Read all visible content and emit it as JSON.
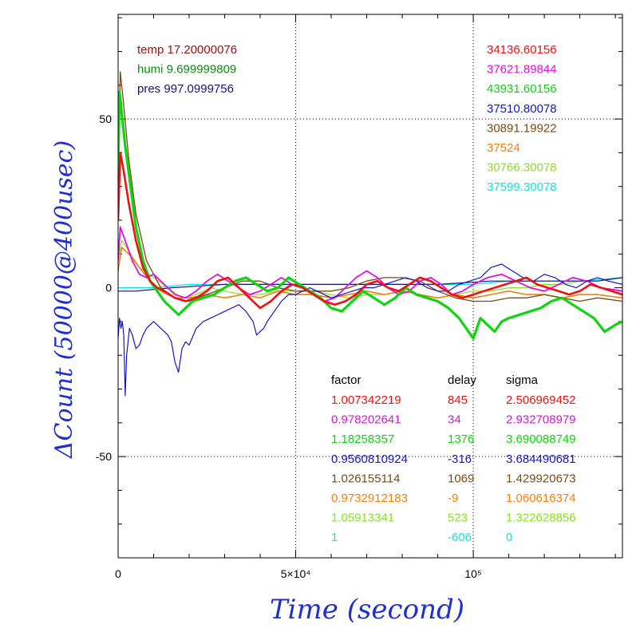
{
  "chart_data": {
    "type": "line",
    "xlabel": "Time (second)",
    "ylabel": "ΔCount (50000@400usec)",
    "xlim": [
      0,
      142000
    ],
    "ylim": [
      -80,
      81
    ],
    "grid": "dotted at x=50000, x=100000, y=50, y=-50",
    "y_ticks": [
      {
        "value": 50,
        "label": "50"
      },
      {
        "value": 0,
        "label": "0"
      },
      {
        "value": -50,
        "label": "-50"
      }
    ],
    "x_ticks": [
      {
        "value": 0,
        "label": "0"
      },
      {
        "value": 50000,
        "label": "5×10⁴"
      },
      {
        "value": 100000,
        "label": "10⁵"
      }
    ],
    "env": [
      {
        "text": "temp 17.20000076",
        "color": "#9b1010"
      },
      {
        "text": "humi 9.699999809",
        "color": "#0d8a0d"
      },
      {
        "text": "pres 997.0999756",
        "color": "#14147a"
      }
    ],
    "means": [
      {
        "text": "34136.60156",
        "color": "#ee1111"
      },
      {
        "text": "37621.89844",
        "color": "#e010e0"
      },
      {
        "text": "43931.60156",
        "color": "#10d410"
      },
      {
        "text": "37510.80078",
        "color": "#1515c8"
      },
      {
        "text": "30891.19922",
        "color": "#7a4a14"
      },
      {
        "text": "37524",
        "color": "#f08010"
      },
      {
        "text": "30766.30078",
        "color": "#8ae020"
      },
      {
        "text": "37599.30078",
        "color": "#10e0e0"
      }
    ],
    "table": {
      "headers": [
        "factor",
        "delay",
        "sigma"
      ],
      "header_color": "#000000",
      "rows": [
        {
          "factor": "1.007342219",
          "delay": "845",
          "sigma": "2.506969452",
          "color": "#ee1111"
        },
        {
          "factor": "0.978202641",
          "delay": "34",
          "sigma": "2.932708979",
          "color": "#e010e0"
        },
        {
          "factor": "1.18258357",
          "delay": "1376",
          "sigma": "3.690088749",
          "color": "#10d410"
        },
        {
          "factor": "0.9560810924",
          "delay": "-316",
          "sigma": "3.684490681",
          "color": "#1515c8"
        },
        {
          "factor": "1.026155114",
          "delay": "1069",
          "sigma": "1.429920673",
          "color": "#7a4a14"
        },
        {
          "factor": "0.9732912183",
          "delay": "-9",
          "sigma": "1.060616374",
          "color": "#f08010"
        },
        {
          "factor": "1.05913341",
          "delay": "523",
          "sigma": "1.322628856",
          "color": "#8ae020"
        },
        {
          "factor": "1",
          "delay": "-606",
          "sigma": "0",
          "color": "#10e0e0"
        }
      ]
    },
    "series": [
      {
        "color": "#8ae020",
        "width": 1.2,
        "x": [
          0,
          1000,
          3000,
          6000,
          10000,
          14000,
          18000,
          22000,
          26000,
          30000,
          35000,
          40000,
          45000,
          50000,
          55000,
          60000,
          65000,
          70000,
          75000,
          80000,
          85000,
          90000,
          95000,
          100000,
          105000,
          110000,
          115000,
          120000,
          125000,
          130000,
          135000,
          142000
        ],
        "y": [
          8,
          14,
          11,
          6,
          3,
          0,
          -3,
          -2,
          0,
          -1,
          -2,
          -2,
          -1,
          -1,
          -1,
          -2,
          -3,
          -2,
          -2,
          -1,
          -2,
          -3,
          -2,
          -1,
          -1,
          0,
          0,
          1,
          1,
          2,
          2,
          3
        ]
      },
      {
        "color": "#10e0e0",
        "width": 1.2,
        "x": [
          0,
          10000,
          20000,
          30000,
          40000,
          50000,
          60000,
          70000,
          80000,
          90000,
          100000,
          110000,
          120000,
          130000,
          142000
        ],
        "y": [
          0,
          0,
          1,
          1,
          1,
          1,
          1,
          1,
          1,
          1,
          1,
          2,
          2,
          2,
          3
        ]
      },
      {
        "color": "#14147a",
        "width": 1.2,
        "x": [
          0,
          5000,
          15000,
          30000,
          45000,
          60000,
          75000,
          90000,
          105000,
          120000,
          135000,
          142000
        ],
        "y": [
          -1,
          -1,
          0,
          1,
          1,
          1,
          1,
          1,
          2,
          2,
          2,
          3
        ]
      },
      {
        "color": "#f08010",
        "width": 1.6,
        "x": [
          0,
          1000,
          3000,
          6000,
          9000,
          12000,
          16000,
          20000,
          25000,
          30000,
          35000,
          40000,
          45000,
          50000,
          55000,
          60000,
          65000,
          70000,
          75000,
          80000,
          85000,
          90000,
          95000,
          100000,
          105000,
          110000,
          115000,
          120000,
          125000,
          130000,
          135000,
          142000
        ],
        "y": [
          5,
          12,
          10,
          6,
          2,
          -1,
          -3,
          -3,
          -2,
          -3,
          -2,
          -3,
          -1,
          -2,
          -2,
          -3,
          -2,
          -1,
          -2,
          -1,
          -2,
          -3,
          -2,
          -3,
          -2,
          -1,
          -2,
          -2,
          -3,
          -2,
          -2,
          -3
        ]
      },
      {
        "color": "#7a4a14",
        "width": 1.3,
        "x": [
          0,
          600,
          1500,
          3000,
          5000,
          8000,
          12000,
          16000,
          20000,
          25000,
          30000,
          35000,
          40000,
          45000,
          50000,
          55000,
          60000,
          65000,
          70000,
          75000,
          80000,
          85000,
          90000,
          95000,
          100000,
          105000,
          110000,
          115000,
          120000,
          125000,
          130000,
          135000,
          142000
        ],
        "y": [
          30,
          64,
          55,
          38,
          22,
          8,
          0,
          -3,
          -4,
          -2,
          0,
          2,
          2,
          0,
          -1,
          -1,
          -1,
          0,
          2,
          3,
          3,
          2,
          -1,
          -3,
          -4,
          -4,
          -3,
          -3,
          -2,
          -3,
          -4,
          -3,
          -4
        ]
      },
      {
        "color": "#e010e0",
        "width": 1.8,
        "x": [
          0,
          600,
          2000,
          4000,
          6000,
          8000,
          10000,
          13000,
          16000,
          19000,
          22000,
          25000,
          28000,
          31000,
          34000,
          37000,
          40000,
          43000,
          46000,
          49000,
          52000,
          55000,
          58000,
          61000,
          64000,
          67000,
          70000,
          73000,
          76000,
          79000,
          82000,
          85000,
          88000,
          91000,
          94000,
          97000,
          100000,
          104000,
          108000,
          112000,
          116000,
          120000,
          124000,
          128000,
          132000,
          136000,
          142000
        ],
        "y": [
          8,
          18,
          14,
          8,
          4,
          3,
          4,
          1,
          -2,
          -3,
          -1,
          2,
          4,
          2,
          0,
          -2,
          -1,
          1,
          3,
          1,
          0,
          -2,
          -4,
          -3,
          0,
          3,
          5,
          3,
          0,
          -2,
          -1,
          2,
          3,
          1,
          -2,
          -1,
          1,
          3,
          4,
          2,
          0,
          -1,
          1,
          3,
          2,
          0,
          -1
        ]
      },
      {
        "color": "#1515c8",
        "width": 1.2,
        "x": [
          0,
          400,
          800,
          1200,
          1600,
          2000,
          2400,
          2800,
          3200,
          4000,
          5000,
          6000,
          7000,
          8000,
          9000,
          10000,
          11000,
          12000,
          13000,
          14000,
          15000,
          16000,
          17000,
          18000,
          19000,
          20000,
          22000,
          24000,
          26000,
          28000,
          30000,
          32000,
          34000,
          36000,
          38000,
          39000,
          40000,
          41000,
          42000,
          44000,
          46000,
          48000,
          50000,
          52000,
          54000,
          56000,
          58000,
          60000,
          63000,
          66000,
          69000,
          72000,
          75000,
          78000,
          81000,
          84000,
          87000,
          90000,
          93000,
          96000,
          99000,
          102000,
          105000,
          108000,
          111000,
          114000,
          117000,
          120000,
          123000,
          126000,
          129000,
          132000,
          135000,
          138000,
          142000
        ],
        "y": [
          -15,
          -9,
          -12,
          -10,
          -14,
          -32,
          -20,
          -16,
          -12,
          -14,
          -18,
          -17,
          -14,
          -12,
          -11,
          -10,
          -11,
          -12,
          -13,
          -14,
          -16,
          -22,
          -25,
          -18,
          -16,
          -17,
          -12,
          -10,
          -9,
          -8,
          -7,
          -6,
          -5,
          -7,
          -10,
          -14,
          -13,
          -12,
          -10,
          -7,
          -4,
          -2,
          -2,
          -1,
          0,
          -1,
          -2,
          -3,
          -2,
          -1,
          0,
          0,
          1,
          2,
          3,
          2,
          0,
          -1,
          -1,
          1,
          2,
          3,
          6,
          7,
          5,
          3,
          2,
          4,
          3,
          1,
          0,
          2,
          3,
          2,
          1
        ]
      },
      {
        "color": "#10d410",
        "width": 3.2,
        "x": [
          0,
          400,
          1000,
          2000,
          3500,
          5000,
          7000,
          9000,
          11000,
          13000,
          15000,
          17000,
          19000,
          21000,
          24000,
          27000,
          30000,
          33000,
          36000,
          39000,
          42000,
          45000,
          48000,
          51000,
          54000,
          57000,
          60000,
          63000,
          66000,
          69000,
          72000,
          75000,
          78000,
          81000,
          84000,
          87000,
          90000,
          93000,
          96000,
          98000,
          100000,
          102000,
          104000,
          106000,
          108000,
          110000,
          113000,
          116000,
          119000,
          122000,
          125000,
          128000,
          131000,
          134000,
          137000,
          140000,
          142000
        ],
        "y": [
          35,
          58,
          52,
          42,
          30,
          18,
          8,
          2,
          -1,
          -4,
          -6,
          -8,
          -6,
          -4,
          -3,
          -2,
          0,
          2,
          3,
          1,
          -1,
          0,
          3,
          1,
          -1,
          -3,
          -6,
          -7,
          -4,
          -1,
          -3,
          -5,
          -3,
          0,
          -2,
          -3,
          -4,
          -6,
          -9,
          -12,
          -15,
          -9,
          -11,
          -13,
          -10,
          -9,
          -8,
          -7,
          -6,
          -4,
          -3,
          -5,
          -7,
          -9,
          -13,
          -11,
          -10
        ]
      },
      {
        "color": "#ee1111",
        "width": 2.6,
        "x": [
          0,
          600,
          1500,
          3000,
          5000,
          7000,
          9000,
          11000,
          13000,
          16000,
          19000,
          22000,
          25000,
          28000,
          31000,
          34000,
          37000,
          40000,
          43000,
          46000,
          49000,
          52000,
          55000,
          58000,
          61000,
          64000,
          67000,
          70000,
          73000,
          76000,
          79000,
          82000,
          85000,
          88000,
          91000,
          94000,
          97000,
          100000,
          103000,
          106000,
          109000,
          112000,
          115000,
          118000,
          121000,
          124000,
          127000,
          130000,
          133000,
          136000,
          139000,
          142000
        ],
        "y": [
          20,
          40,
          35,
          25,
          14,
          6,
          2,
          0,
          -1,
          -3,
          -4,
          -3,
          -1,
          2,
          3,
          0,
          -3,
          -6,
          -4,
          -1,
          1,
          0,
          -2,
          -4,
          -5,
          -4,
          -2,
          1,
          2,
          0,
          -1,
          1,
          3,
          2,
          0,
          -2,
          -3,
          -2,
          -1,
          0,
          1,
          2,
          3,
          1,
          0,
          -1,
          -2,
          -1,
          1,
          0,
          -1,
          -2
        ]
      }
    ]
  }
}
